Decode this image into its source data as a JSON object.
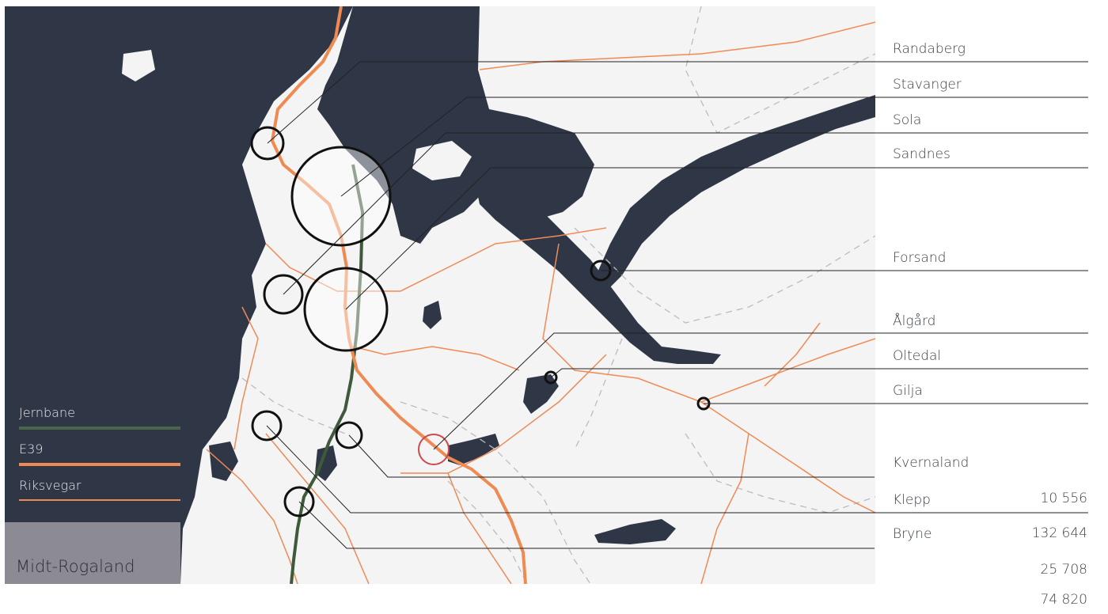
{
  "map": {
    "title": "Midt-Rogaland",
    "colors": {
      "sea": "#2f3747",
      "land": "#f4f4f4",
      "railway": "#3e5a3a",
      "e39": "#ee8a52",
      "national_road": "#ef8a55",
      "municipal_border": "#b9bcc2",
      "highlight_circle": "#c94b4b"
    },
    "legend": [
      {
        "label": "Jernbane",
        "color": "#4a6547"
      },
      {
        "label": "E39",
        "color": "#ee8a52"
      },
      {
        "label": "Riksvegar",
        "color": "#ef8a55"
      }
    ],
    "places": [
      "Randaberg",
      "Stavanger",
      "Sola",
      "Sandnes",
      "Forsand",
      "Ålgård",
      "Oltedal",
      "Gilja",
      "Kvernaland",
      "Klepp",
      "Bryne"
    ],
    "values": [
      "10 556",
      "132 644",
      "25 708",
      "74 820"
    ]
  }
}
